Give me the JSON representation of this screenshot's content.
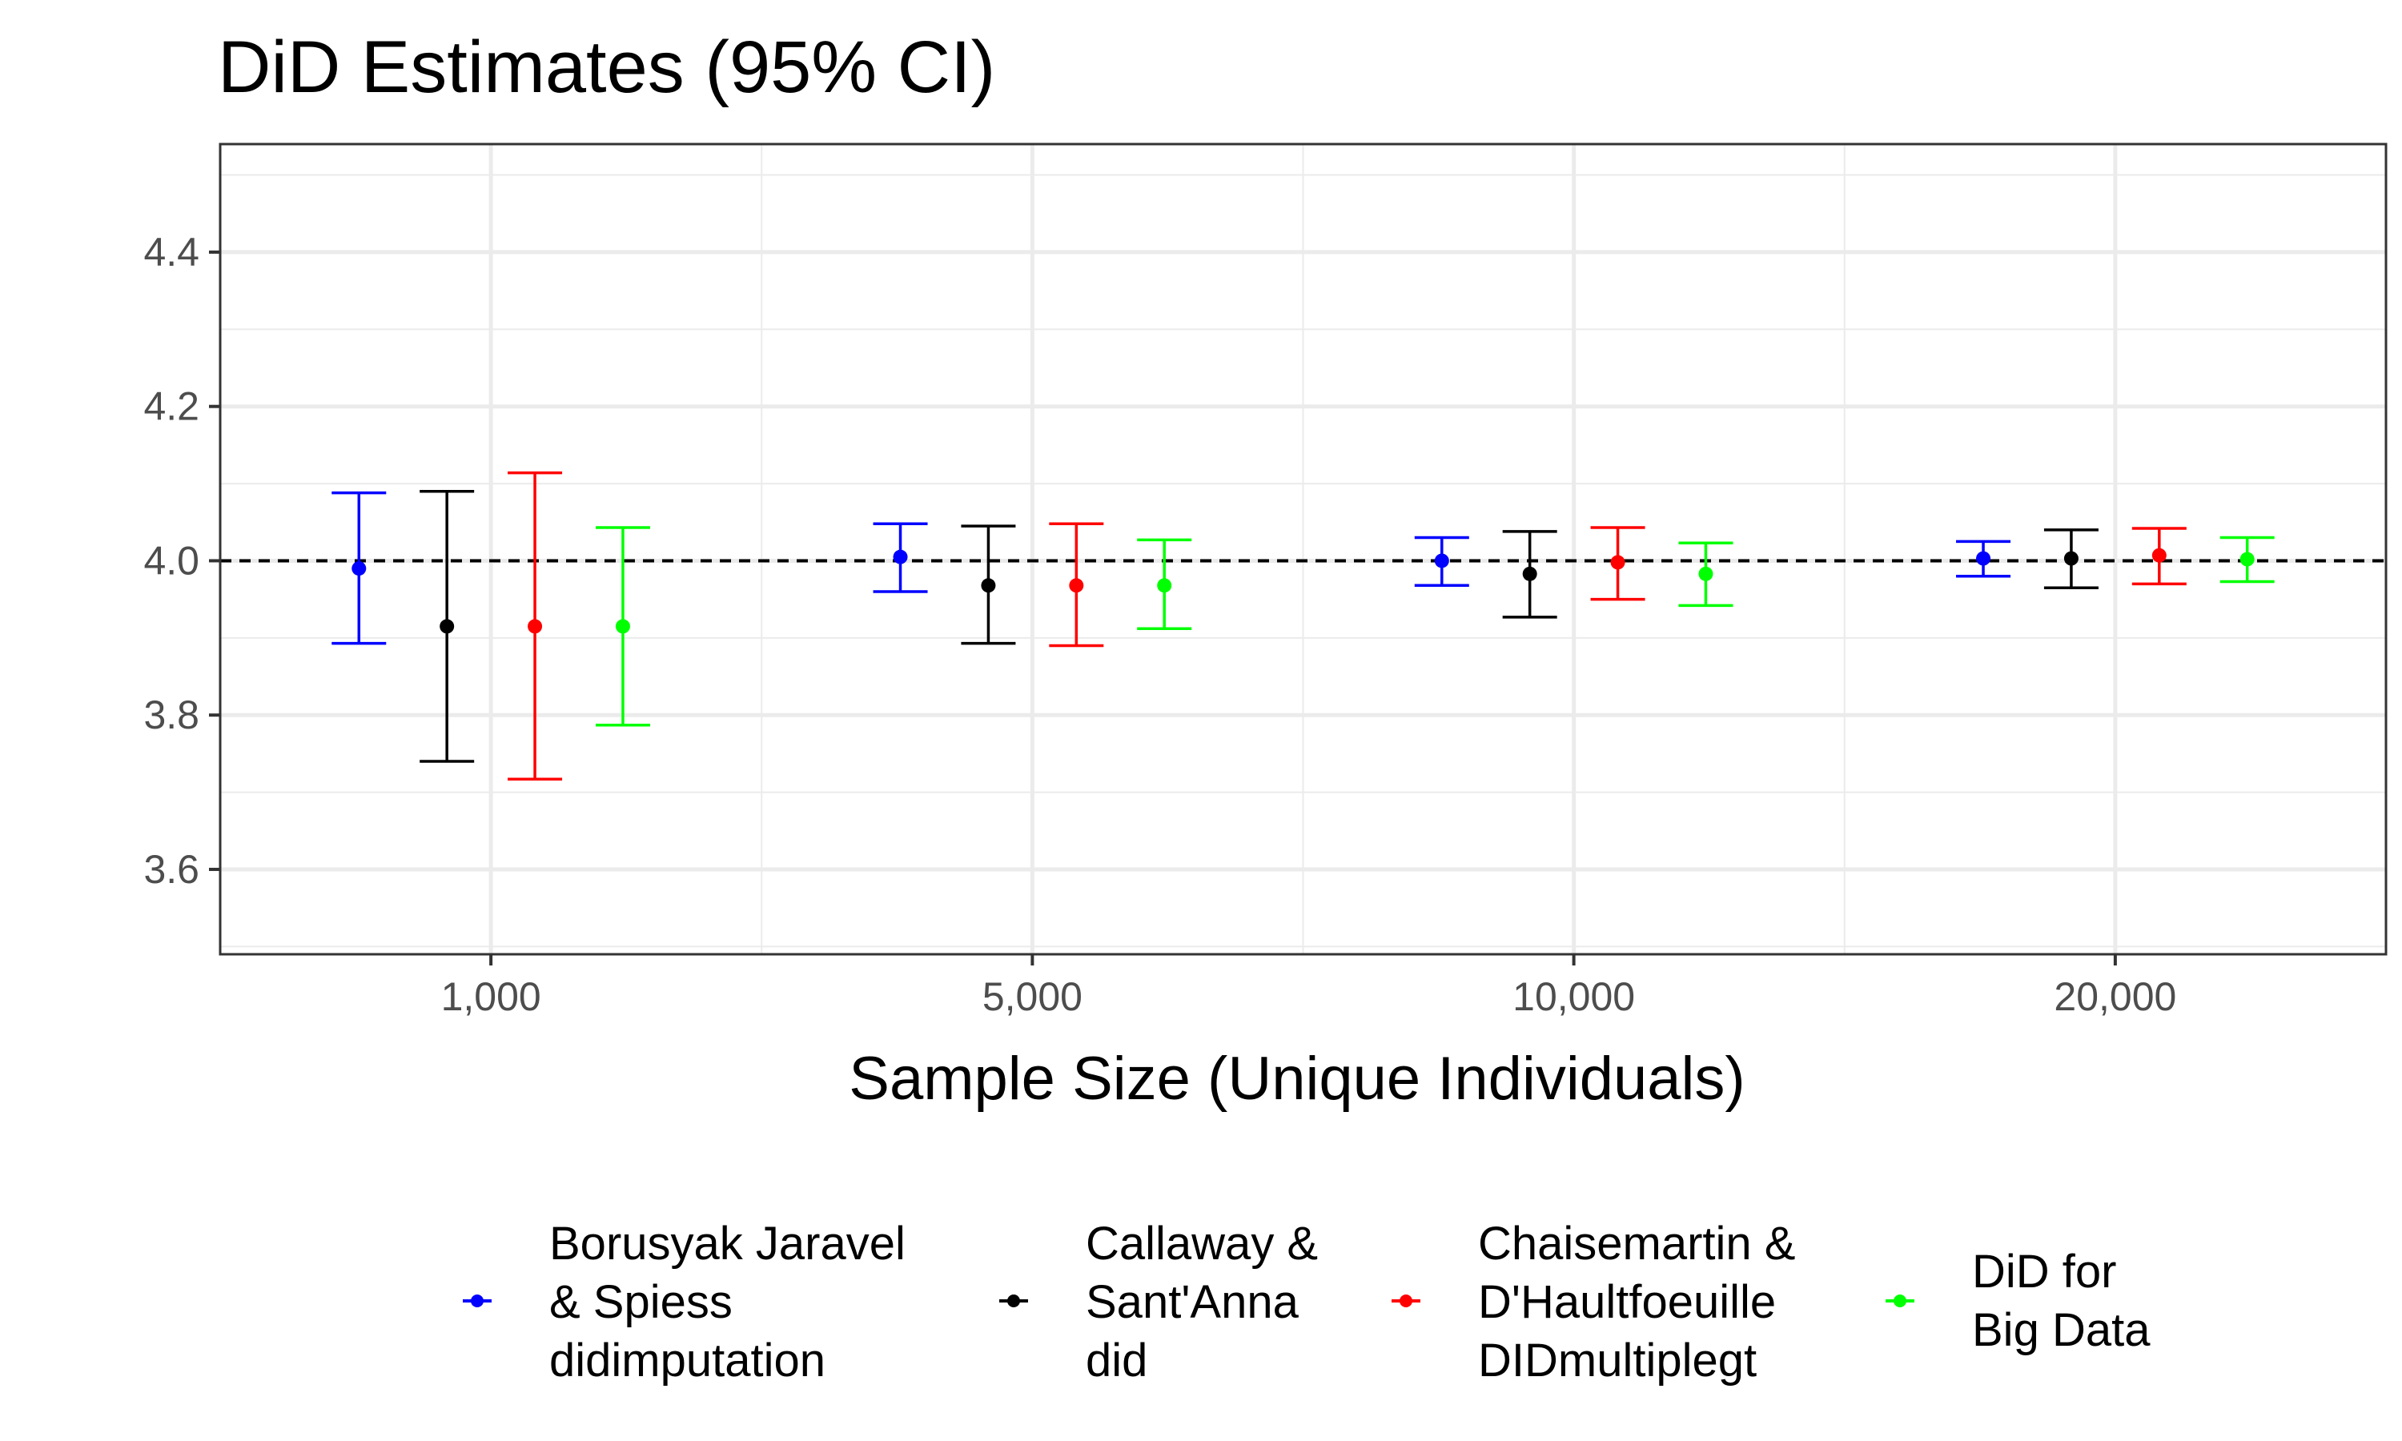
{
  "chart_data": {
    "type": "scatter",
    "title": "DiD Estimates (95% CI)",
    "xlabel": "Sample Size (Unique Individuals)",
    "ylabel": "",
    "categories": [
      "1,000",
      "5,000",
      "10,000",
      "20,000"
    ],
    "ylim": [
      3.49,
      4.54
    ],
    "yticks": [
      "3.6",
      "3.8",
      "4.0",
      "4.2",
      "4.4"
    ],
    "reference_line": 4.0,
    "grid": true,
    "legend_position": "bottom",
    "series": [
      {
        "label_lines": [
          "Borusyak Jaravel",
          "& Spiess",
          "didimputation"
        ],
        "color": "#0000ff",
        "estimates": [
          3.99,
          4.005,
          4.0,
          4.003
        ],
        "lower": [
          3.893,
          3.96,
          3.968,
          3.98
        ],
        "upper": [
          4.088,
          4.048,
          4.03,
          4.025
        ]
      },
      {
        "label_lines": [
          "Callaway &",
          "Sant'Anna",
          "did"
        ],
        "color": "#000000",
        "estimates": [
          3.915,
          3.968,
          3.983,
          4.003
        ],
        "lower": [
          3.74,
          3.893,
          3.927,
          3.965
        ],
        "upper": [
          4.09,
          4.045,
          4.038,
          4.04
        ]
      },
      {
        "label_lines": [
          "Chaisemartin &",
          "D'Haultfoeuille",
          "DIDmultiplegt"
        ],
        "color": "#ff0000",
        "estimates": [
          3.915,
          3.968,
          3.998,
          4.007
        ],
        "lower": [
          3.717,
          3.89,
          3.95,
          3.97
        ],
        "upper": [
          4.114,
          4.048,
          4.043,
          4.042
        ]
      },
      {
        "label_lines": [
          "DiD for",
          "Big Data"
        ],
        "color": "#00ff00",
        "estimates": [
          3.915,
          3.968,
          3.983,
          4.002
        ],
        "lower": [
          3.787,
          3.912,
          3.942,
          3.973
        ],
        "upper": [
          4.043,
          4.027,
          4.023,
          4.03
        ]
      }
    ]
  }
}
